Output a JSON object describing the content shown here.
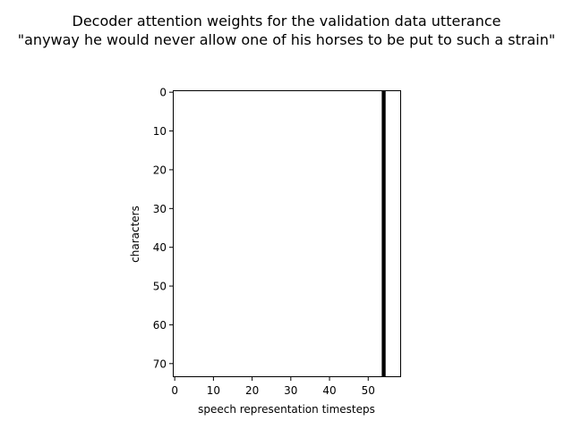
{
  "chart_data": {
    "type": "heatmap",
    "title_lines": [
      "Decoder attention weights for the validation data utterance",
      "\"anyway he would never allow one of his horses to be put to such a strain\""
    ],
    "xlabel": "speech representation timesteps",
    "ylabel": "characters",
    "x_ticks": [
      0,
      10,
      20,
      30,
      40,
      50
    ],
    "y_ticks": [
      0,
      10,
      20,
      30,
      40,
      50,
      60,
      70
    ],
    "xlim": [
      -0.5,
      58.5
    ],
    "ylim": [
      73.5,
      -0.5
    ],
    "n_timesteps": 59,
    "n_characters": 74,
    "colormap": "grayscale-inverted",
    "background_value": 0,
    "high_attention_columns": [
      54
    ],
    "high_value": 1,
    "grid": false,
    "colors": {
      "low": "#ffffff",
      "high": "#000000"
    }
  }
}
